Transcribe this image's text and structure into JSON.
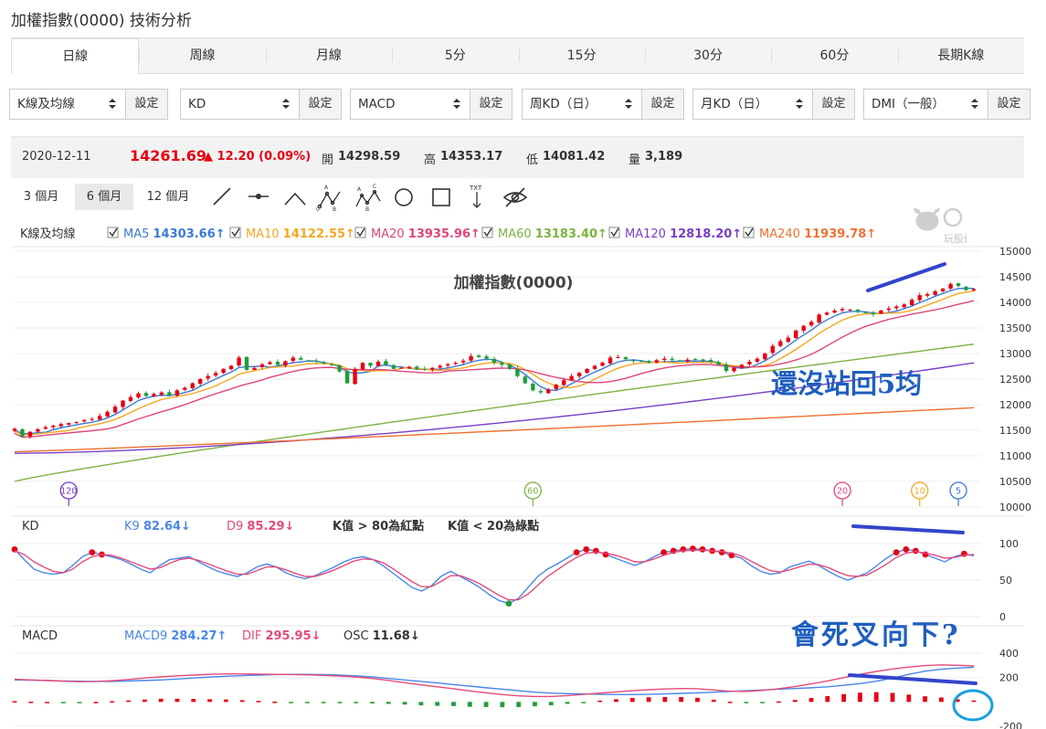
{
  "page": {
    "title": "加權指數(0000) 技術分析"
  },
  "tabs": [
    {
      "label": "日線",
      "active": true
    },
    {
      "label": "周線"
    },
    {
      "label": "月線"
    },
    {
      "label": "5分"
    },
    {
      "label": "15分"
    },
    {
      "label": "30分"
    },
    {
      "label": "60分"
    },
    {
      "label": "長期K線"
    }
  ],
  "selectors": [
    {
      "value": "K線及均線",
      "button": "設定"
    },
    {
      "value": "KD",
      "button": "設定"
    },
    {
      "value": "MACD",
      "button": "設定"
    },
    {
      "value": "周KD（日）",
      "button": "設定"
    },
    {
      "value": "月KD（日）",
      "button": "設定"
    },
    {
      "value": "DMI（一般）",
      "button": "設定"
    }
  ],
  "quote": {
    "date": "2020-12-11",
    "price": "14261.69",
    "change": "▲ 12.20 (0.09%)",
    "open_label": "開",
    "open": "14298.59",
    "high_label": "高",
    "high": "14353.17",
    "low_label": "低",
    "low": "14081.42",
    "volume_label": "量",
    "volume": "3,189"
  },
  "ranges": [
    "3 個月",
    "6 個月",
    "12 個月"
  ],
  "tools": [
    "line-tool-icon",
    "segment-tool-icon",
    "angle-tool-icon",
    "abc-pattern-icon",
    "abcd-pattern-icon",
    "circle-tool-icon",
    "rect-tool-icon",
    "text-tool-icon",
    "hide-tool-icon"
  ],
  "watermark": {
    "text": "玩股網"
  },
  "colors": {
    "up": "#e60012",
    "down": "#1f9d3a",
    "ma5": "#3a7bd5",
    "ma10": "#f5a623",
    "ma20": "#e0457b",
    "ma60": "#7cb342",
    "ma120": "#7a3fc7",
    "ma240": "#f07030",
    "k": "#4a86e8",
    "d": "#e54a7a",
    "annotation": "#3344cc"
  },
  "chart_data": [
    {
      "type": "candlestick",
      "legend_label": "K線及均線",
      "title": "加權指數(0000)",
      "ylim": [
        10000,
        15000
      ],
      "yticks": [
        10000,
        10500,
        11000,
        11500,
        12000,
        12500,
        13000,
        13500,
        14000,
        14500,
        15000
      ],
      "moving_averages": [
        {
          "name": "MA5",
          "value": "14303.66",
          "arrow": "↑",
          "color": "#3a7bd5",
          "checked": true
        },
        {
          "name": "MA10",
          "value": "14122.55",
          "arrow": "↑",
          "color": "#f5a623",
          "checked": true
        },
        {
          "name": "MA20",
          "value": "13935.96",
          "arrow": "↑",
          "color": "#e0457b",
          "checked": true
        },
        {
          "name": "MA60",
          "value": "13183.40",
          "arrow": "↑",
          "color": "#7cb342",
          "checked": true
        },
        {
          "name": "MA120",
          "value": "12818.20",
          "arrow": "↑",
          "color": "#7a3fc7",
          "checked": true
        },
        {
          "name": "MA240",
          "value": "11939.78",
          "arrow": "↑",
          "color": "#f07030",
          "checked": true
        }
      ],
      "ma_markers": [
        {
          "label": "120",
          "color": "#7a3fc7",
          "index": 7
        },
        {
          "label": "60",
          "color": "#7cb342",
          "index": 67
        },
        {
          "label": "20",
          "color": "#e0457b",
          "index": 107
        },
        {
          "label": "10",
          "color": "#f5a623",
          "index": 117
        },
        {
          "label": "5",
          "color": "#3a7bd5",
          "index": 122
        }
      ],
      "closes": [
        11530,
        11380,
        11470,
        11520,
        11560,
        11590,
        11620,
        11640,
        11660,
        11700,
        11720,
        11780,
        11860,
        11960,
        12080,
        12150,
        12220,
        12170,
        12210,
        12240,
        12180,
        12280,
        12330,
        12420,
        12500,
        12560,
        12620,
        12700,
        12760,
        12920,
        12680,
        12720,
        12790,
        12830,
        12780,
        12850,
        12920,
        12880,
        12860,
        12840,
        12800,
        12770,
        12650,
        12420,
        12700,
        12820,
        12760,
        12840,
        12780,
        12700,
        12720,
        12740,
        12700,
        12690,
        12720,
        12760,
        12790,
        12820,
        12860,
        12950,
        12930,
        12900,
        12820,
        12780,
        12700,
        12560,
        12420,
        12280,
        12240,
        12300,
        12390,
        12480,
        12560,
        12620,
        12700,
        12760,
        12820,
        12920,
        12930,
        12890,
        12850,
        12860,
        12820,
        12870,
        12900,
        12870,
        12860,
        12880,
        12890,
        12870,
        12840,
        12780,
        12660,
        12720,
        12780,
        12840,
        12900,
        13000,
        13150,
        13240,
        13310,
        13450,
        13540,
        13620,
        13760,
        13800,
        13840,
        13870,
        13860,
        13820,
        13800,
        13770,
        13840,
        13880,
        13920,
        13960,
        14050,
        14140,
        14160,
        14220,
        14270,
        14360,
        14320,
        14240,
        14262
      ],
      "overlays": [
        {
          "name": "MA5",
          "start": 11450,
          "end": 14304
        },
        {
          "name": "MA10",
          "start": 11400,
          "end": 14123
        },
        {
          "name": "MA20",
          "start": 11300,
          "end": 13936
        },
        {
          "name": "MA60",
          "start": 10500,
          "end": 13183
        },
        {
          "name": "MA120",
          "start": 11050,
          "end": 12818
        },
        {
          "name": "MA240",
          "start": 11080,
          "end": 11940
        }
      ]
    },
    {
      "type": "line",
      "legend_label": "KD",
      "ylim": [
        0,
        100
      ],
      "yticks": [
        0,
        50,
        100
      ],
      "series": [
        {
          "name": "K9",
          "value": "82.64",
          "arrow": "↓",
          "color": "#4a86e8",
          "values": [
            92,
            78,
            65,
            60,
            58,
            60,
            70,
            82,
            88,
            85,
            82,
            78,
            72,
            65,
            60,
            70,
            78,
            80,
            82,
            75,
            68,
            62,
            58,
            55,
            60,
            68,
            72,
            68,
            60,
            55,
            52,
            56,
            62,
            68,
            75,
            80,
            82,
            78,
            70,
            60,
            50,
            40,
            35,
            42,
            55,
            62,
            55,
            48,
            40,
            30,
            22,
            18,
            25,
            40,
            55,
            65,
            72,
            80,
            88,
            92,
            90,
            85,
            80,
            75,
            70,
            75,
            82,
            88,
            90,
            92,
            93,
            92,
            90,
            88,
            84,
            80,
            70,
            62,
            58,
            60,
            68,
            72,
            76,
            70,
            62,
            55,
            50,
            55,
            60,
            70,
            80,
            88,
            92,
            90,
            85,
            80,
            75,
            82,
            86,
            83
          ]
        },
        {
          "name": "D9",
          "value": "85.29",
          "arrow": "↓",
          "color": "#e54a7a",
          "values": [
            90,
            85,
            75,
            68,
            62,
            60,
            65,
            75,
            82,
            85,
            84,
            80,
            75,
            70,
            65,
            67,
            73,
            78,
            80,
            77,
            72,
            67,
            62,
            58,
            58,
            63,
            68,
            68,
            64,
            59,
            55,
            55,
            59,
            64,
            70,
            76,
            79,
            78,
            74,
            66,
            57,
            48,
            41,
            41,
            48,
            56,
            56,
            51,
            45,
            37,
            29,
            23,
            23,
            31,
            43,
            55,
            64,
            73,
            81,
            87,
            88,
            87,
            84,
            80,
            75,
            75,
            79,
            84,
            88,
            90,
            91,
            91,
            90,
            89,
            87,
            83,
            76,
            69,
            63,
            61,
            64,
            68,
            72,
            71,
            67,
            61,
            56,
            55,
            57,
            64,
            72,
            81,
            87,
            89,
            87,
            84,
            80,
            81,
            84,
            85
          ]
        }
      ],
      "notes": [
        "K值 > 80為紅點",
        "K值 < 20為綠點"
      ]
    },
    {
      "type": "line",
      "legend_label": "MACD",
      "ylim": [
        -200,
        400
      ],
      "yticks": [
        -200,
        200,
        400
      ],
      "series": [
        {
          "name": "MACD9",
          "value": "284.27",
          "arrow": "↑",
          "color": "#4a86e8",
          "values": [
            180,
            178,
            176,
            172,
            170,
            168,
            168,
            172,
            176,
            180,
            188,
            196,
            204,
            210,
            216,
            220,
            224,
            226,
            226,
            224,
            220,
            214,
            205,
            192,
            180,
            168,
            156,
            142,
            130,
            116,
            104,
            92,
            80,
            72,
            68,
            66,
            62,
            60,
            60,
            62,
            66,
            70,
            74,
            80,
            86,
            92,
            98,
            104,
            110,
            116,
            124,
            136,
            150,
            170,
            196,
            226,
            252,
            268,
            278,
            284
          ]
        },
        {
          "name": "DIF",
          "value": "295.95",
          "arrow": "↓",
          "color": "#e54a7a",
          "values": [
            186,
            180,
            176,
            170,
            166,
            168,
            174,
            184,
            196,
            206,
            214,
            220,
            226,
            230,
            230,
            228,
            226,
            224,
            222,
            218,
            212,
            204,
            192,
            176,
            158,
            140,
            124,
            108,
            90,
            74,
            60,
            50,
            44,
            44,
            52,
            62,
            72,
            82,
            92,
            100,
            106,
            110,
            108,
            98,
            88,
            86,
            94,
            108,
            126,
            148,
            172,
            200,
            226,
            250,
            270,
            286,
            298,
            304,
            300,
            296
          ]
        },
        {
          "name": "OSC",
          "value": "11.68",
          "arrow": "↓",
          "color": "#333",
          "values": [
            6,
            2,
            0,
            -2,
            -4,
            0,
            6,
            12,
            20,
            26,
            26,
            24,
            22,
            20,
            14,
            8,
            2,
            -2,
            -4,
            -6,
            -8,
            -10,
            -13,
            -16,
            -22,
            -28,
            -32,
            -34,
            -40,
            -42,
            -44,
            -42,
            -36,
            -28,
            -16,
            -4,
            10,
            22,
            32,
            38,
            40,
            40,
            34,
            18,
            2,
            -6,
            -4,
            4,
            16,
            32,
            48,
            64,
            76,
            80,
            74,
            60,
            46,
            36,
            22,
            12
          ]
        }
      ]
    }
  ],
  "annotations": {
    "note1": "還沒站回5均",
    "note2": "會死叉向下?"
  }
}
